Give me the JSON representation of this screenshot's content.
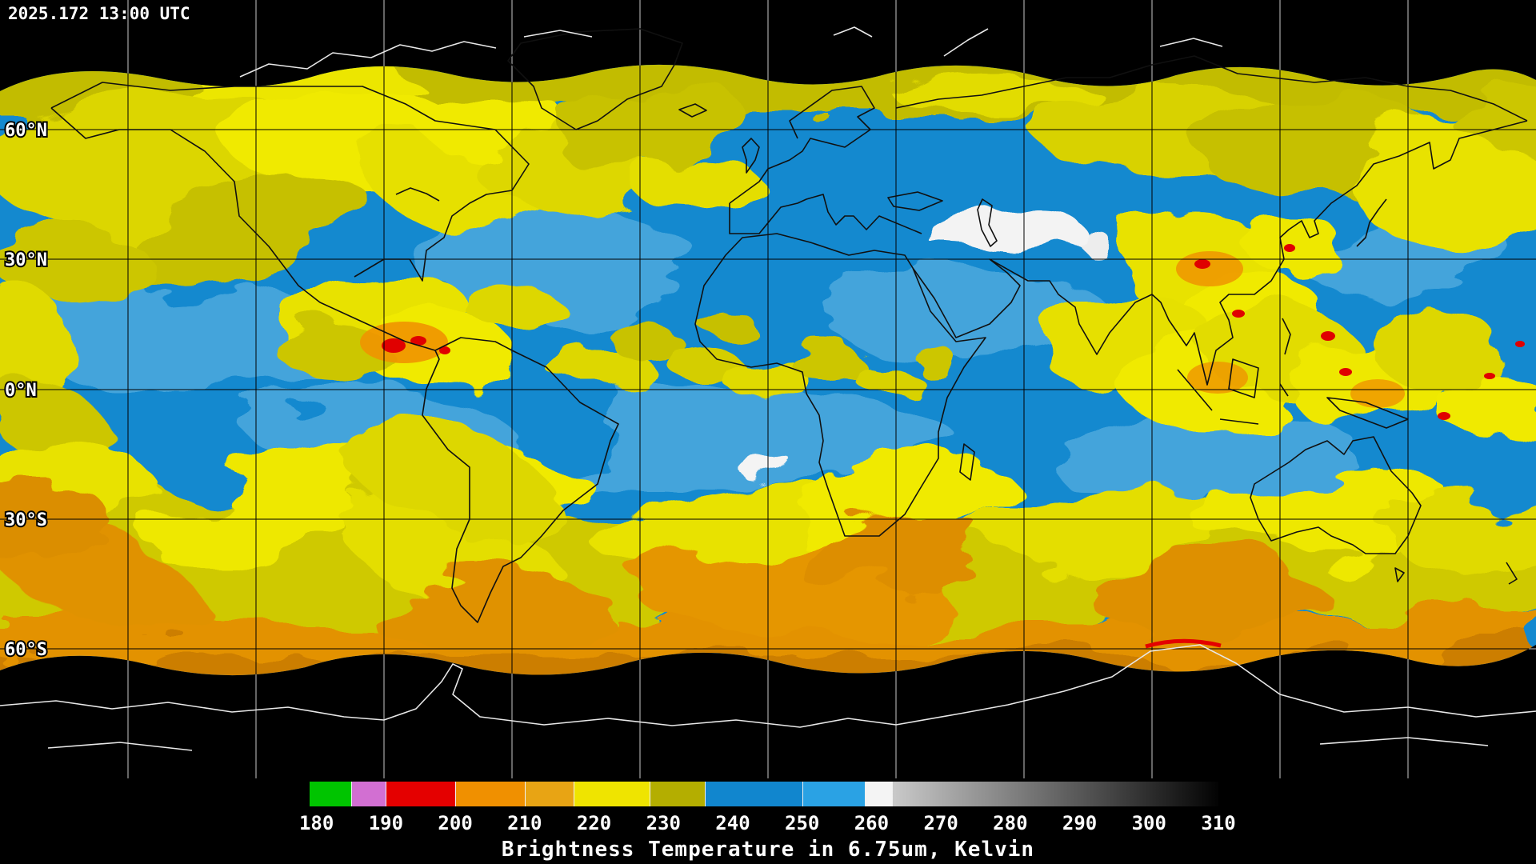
{
  "header": {
    "timestamp": "2025.172 13:00 UTC"
  },
  "map": {
    "lat_labels": [
      {
        "text": "60°N"
      },
      {
        "text": "30°N"
      },
      {
        "text": "0°N"
      },
      {
        "text": "30°S"
      },
      {
        "text": "60°S"
      }
    ]
  },
  "colorbar": {
    "title": "Brightness Temperature in 6.75um, Kelvin",
    "axis_min": 179,
    "axis_max": 310,
    "ticks": [
      180,
      190,
      200,
      210,
      220,
      230,
      240,
      250,
      260,
      270,
      280,
      290,
      300,
      310
    ],
    "segments": [
      {
        "from": 179,
        "to": 185,
        "color": "#00c400"
      },
      {
        "from": 185,
        "to": 190,
        "color": "#d26fd2"
      },
      {
        "from": 190,
        "to": 200,
        "color": "#e40000"
      },
      {
        "from": 200,
        "to": 210,
        "color": "#f09000"
      },
      {
        "from": 210,
        "to": 217,
        "color": "#e8a414"
      },
      {
        "from": 217,
        "to": 228,
        "color": "#efe400"
      },
      {
        "from": 228,
        "to": 236,
        "color": "#b4ae00"
      },
      {
        "from": 236,
        "to": 250,
        "color": "#1186ce"
      },
      {
        "from": 250,
        "to": 259,
        "color": "#2aa2e4"
      },
      {
        "from": 259,
        "to": 263,
        "color": "#f4f4f4"
      },
      {
        "from": 263,
        "to": 310,
        "color": "#c9c9c9",
        "to_color": "#030303"
      }
    ]
  },
  "colors": {
    "background": "#000000",
    "moist_blue": "#1489cf",
    "dry_yellow": "#efe400",
    "dry_olive": "#b6b000",
    "warm_orange": "#ef9400",
    "cold_red": "#e40000",
    "hot_white": "#f4f4f4",
    "graticule_dark": "#000000",
    "graticule_light": "#c8c8c8"
  }
}
